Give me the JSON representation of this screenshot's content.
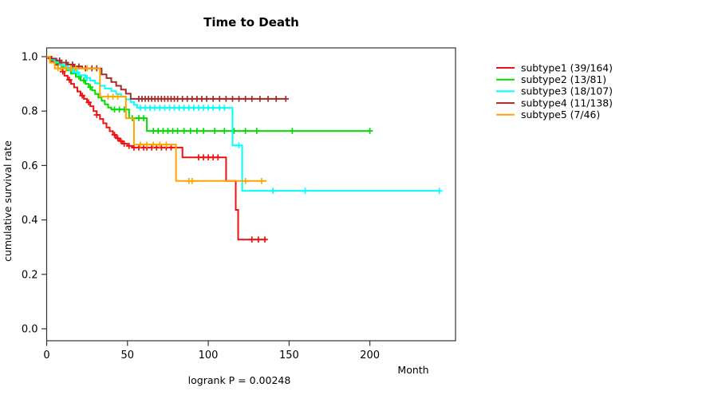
{
  "chart_data": {
    "type": "line",
    "variant": "kaplan-meier-step",
    "title": "Time to Death",
    "xlabel": "Month",
    "ylabel": "cumulative survival rate",
    "footnote": "logrank P = 0.00248",
    "xlim": [
      0,
      253
    ],
    "ylim": [
      0.0,
      1.0
    ],
    "x_ticks": [
      0,
      50,
      100,
      150,
      200
    ],
    "y_ticks": [
      0.0,
      0.2,
      0.4,
      0.6,
      0.8,
      1.0
    ],
    "grid": false,
    "legend_position": "right-outside",
    "series": [
      {
        "name": "subtype1",
        "label": "subtype1 (39/164)",
        "color": "#ee1111",
        "end_month": 136,
        "steps": [
          [
            0,
            1.0
          ],
          [
            1,
            0.994
          ],
          [
            2,
            0.988
          ],
          [
            3,
            0.982
          ],
          [
            5,
            0.97
          ],
          [
            7,
            0.957
          ],
          [
            9,
            0.945
          ],
          [
            11,
            0.93
          ],
          [
            13,
            0.915
          ],
          [
            15,
            0.9
          ],
          [
            17,
            0.887
          ],
          [
            19,
            0.872
          ],
          [
            21,
            0.857
          ],
          [
            23,
            0.845
          ],
          [
            25,
            0.832
          ],
          [
            27,
            0.818
          ],
          [
            29,
            0.8
          ],
          [
            31,
            0.786
          ],
          [
            33,
            0.771
          ],
          [
            35,
            0.755
          ],
          [
            37,
            0.74
          ],
          [
            39,
            0.726
          ],
          [
            41,
            0.713
          ],
          [
            43,
            0.7
          ],
          [
            45,
            0.69
          ],
          [
            47,
            0.68
          ],
          [
            50,
            0.672
          ],
          [
            53,
            0.666
          ],
          [
            84,
            0.63
          ],
          [
            111,
            0.543
          ],
          [
            117,
            0.437
          ],
          [
            118.5,
            0.328
          ]
        ],
        "censor_months": [
          10,
          14,
          22,
          26,
          31,
          42,
          44,
          46,
          48,
          51,
          54,
          57,
          60,
          62,
          65,
          68,
          71,
          74,
          77,
          80,
          94,
          97,
          100,
          103,
          106,
          127,
          131,
          135
        ]
      },
      {
        "name": "subtype2",
        "label": "subtype2 (13/81)",
        "color": "#00dd00",
        "end_month": 200,
        "steps": [
          [
            0,
            1.0
          ],
          [
            3,
            0.988
          ],
          [
            6,
            0.975
          ],
          [
            9,
            0.963
          ],
          [
            12,
            0.95
          ],
          [
            15,
            0.938
          ],
          [
            18,
            0.926
          ],
          [
            21,
            0.913
          ],
          [
            24,
            0.9
          ],
          [
            26,
            0.888
          ],
          [
            28,
            0.876
          ],
          [
            30,
            0.863
          ],
          [
            32,
            0.85
          ],
          [
            34,
            0.838
          ],
          [
            36,
            0.825
          ],
          [
            38,
            0.813
          ],
          [
            40,
            0.806
          ],
          [
            51,
            0.774
          ],
          [
            62,
            0.727
          ]
        ],
        "censor_months": [
          20,
          23,
          27,
          42,
          45,
          48,
          53,
          57,
          60,
          66,
          69,
          72,
          75,
          78,
          81,
          85,
          89,
          93,
          97,
          104,
          110,
          116,
          123,
          130,
          152,
          200
        ]
      },
      {
        "name": "subtype3",
        "label": "subtype3 (18/107)",
        "color": "#00ffff",
        "end_month": 243,
        "steps": [
          [
            0,
            1.0
          ],
          [
            2,
            0.99
          ],
          [
            5,
            0.98
          ],
          [
            8,
            0.97
          ],
          [
            11,
            0.961
          ],
          [
            14,
            0.951
          ],
          [
            17,
            0.942
          ],
          [
            20,
            0.932
          ],
          [
            24,
            0.922
          ],
          [
            27,
            0.912
          ],
          [
            30,
            0.902
          ],
          [
            33,
            0.893
          ],
          [
            36,
            0.883
          ],
          [
            40,
            0.873
          ],
          [
            43,
            0.863
          ],
          [
            46,
            0.853
          ],
          [
            49,
            0.843
          ],
          [
            52,
            0.833
          ],
          [
            54,
            0.823
          ],
          [
            56,
            0.812
          ],
          [
            115,
            0.674
          ],
          [
            121,
            0.507
          ]
        ],
        "censor_months": [
          13,
          16,
          19,
          25,
          58,
          61,
          64,
          67,
          70,
          73,
          76,
          79,
          82,
          85,
          88,
          91,
          94,
          97,
          100,
          103,
          107,
          110,
          119,
          140,
          160,
          243
        ]
      },
      {
        "name": "subtype4",
        "label": "subtype4 (11/138)",
        "color": "#a52a2a",
        "end_month": 148,
        "steps": [
          [
            0,
            1.0
          ],
          [
            3,
            0.993
          ],
          [
            6,
            0.986
          ],
          [
            9,
            0.978
          ],
          [
            13,
            0.971
          ],
          [
            17,
            0.964
          ],
          [
            22,
            0.957
          ],
          [
            34,
            0.935
          ],
          [
            37,
            0.921
          ],
          [
            40,
            0.907
          ],
          [
            43,
            0.893
          ],
          [
            46,
            0.879
          ],
          [
            49,
            0.864
          ],
          [
            52,
            0.845
          ]
        ],
        "censor_months": [
          8,
          12,
          16,
          20,
          24,
          28,
          31,
          57,
          59,
          61,
          63,
          65,
          67,
          69,
          71,
          73,
          75,
          77,
          79,
          81,
          84,
          87,
          90,
          93,
          96,
          99,
          103,
          107,
          111,
          115,
          119,
          123,
          127,
          132,
          137,
          142,
          148
        ]
      },
      {
        "name": "subtype5",
        "label": "subtype5 (7/46)",
        "color": "#ffa500",
        "end_month": 136,
        "steps": [
          [
            0,
            1.0
          ],
          [
            2,
            0.978
          ],
          [
            5,
            0.957
          ],
          [
            33,
            0.853
          ],
          [
            49,
            0.774
          ],
          [
            54,
            0.677
          ],
          [
            80,
            0.543
          ]
        ],
        "censor_months": [
          7,
          9,
          12,
          15,
          18,
          25,
          38,
          41,
          44,
          58,
          62,
          66,
          70,
          74,
          88,
          90,
          123,
          133
        ]
      }
    ]
  }
}
